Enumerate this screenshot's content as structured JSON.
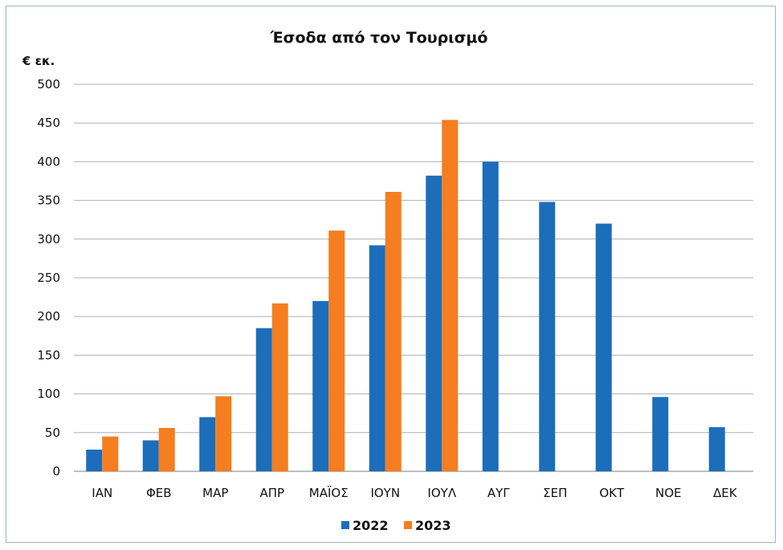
{
  "chart_data": {
    "type": "bar",
    "title": "Έσοδα από τον Τουρισμό",
    "ylabel": "€ εκ.",
    "xlabel": "",
    "categories": [
      "ΙΑΝ",
      "ΦΕΒ",
      "ΜΑΡ",
      "ΑΠΡ",
      "ΜΑΪΟΣ",
      "ΙΟΥΝ",
      "ΙΟΥΛ",
      "ΑΥΓ",
      "ΣΕΠ",
      "ΟΚΤ",
      "ΝΟΕ",
      "ΔΕΚ"
    ],
    "series": [
      {
        "name": "2022",
        "color": "#1c6dba",
        "values": [
          28,
          40,
          70,
          185,
          220,
          292,
          382,
          400,
          348,
          320,
          96,
          57
        ]
      },
      {
        "name": "2023",
        "color": "#f47e20",
        "values": [
          45,
          56,
          97,
          217,
          311,
          361,
          454,
          null,
          null,
          null,
          null,
          null
        ]
      }
    ],
    "ylim": [
      0,
      500
    ],
    "yticks": [
      0,
      50,
      100,
      150,
      200,
      250,
      300,
      350,
      400,
      450,
      500
    ],
    "grid": true,
    "legend_position": "bottom-center"
  }
}
